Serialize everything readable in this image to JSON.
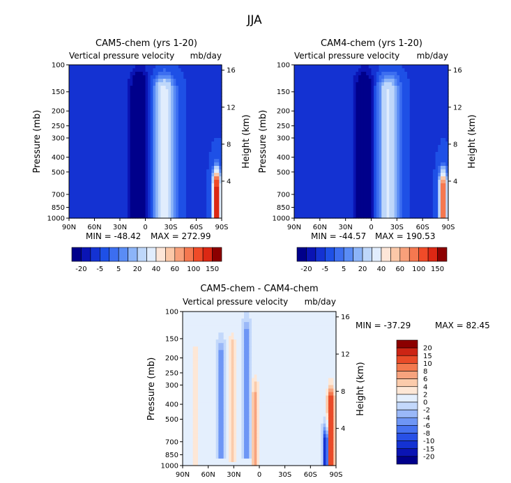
{
  "figure": {
    "title": "JJA"
  },
  "colors": {
    "full": [
      "#00008b",
      "#0a14b4",
      "#1432d2",
      "#1e50e6",
      "#3c6ef0",
      "#5a8cf5",
      "#8cb4f8",
      "#bed7fa",
      "#e1edfd",
      "#fde6d8",
      "#fbc8a8",
      "#f8a07a",
      "#f57850",
      "#f04b28",
      "#dc2814",
      "#8c0000"
    ],
    "diff": [
      "#00008b",
      "#0a14b4",
      "#1432d2",
      "#2850e6",
      "#4672f0",
      "#6e96f5",
      "#9ab8f8",
      "#c3d8fb",
      "#e4effd",
      "#fde7d6",
      "#fbcbab",
      "#f7a37e",
      "#f3794e",
      "#e94b28",
      "#cc2414",
      "#8c0000"
    ]
  },
  "chart_data": [
    {
      "type": "heatmap",
      "title": "CAM5-chem (yrs 1-20)",
      "subtitle_left": "Vertical pressure velocity",
      "subtitle_right": "mb/day",
      "xlabel": "",
      "ylabel": "Pressure (mb)",
      "y2label": "Height (km)",
      "x_ticks": [
        "90N",
        "60N",
        "30N",
        "0",
        "30S",
        "60S",
        "90S"
      ],
      "y_ticks": [
        "100",
        "150",
        "200",
        "250",
        "300",
        "400",
        "500",
        "700",
        "850",
        "1000"
      ],
      "y2_ticks": [
        "16",
        "12",
        "8",
        "4"
      ],
      "min_text": "MIN = -48.42",
      "max_text": "MAX = 272.99",
      "colorbar_labels": [
        "-20",
        "-5",
        "5",
        "20",
        "40",
        "60",
        "100",
        "150"
      ],
      "features": [
        {
          "lat": 7,
          "p_top": 140,
          "p_bottom": 1000,
          "half_width_deg": 10,
          "value": -30
        },
        {
          "lat": -22,
          "p_top": 150,
          "p_bottom": 1000,
          "half_width_deg": 12,
          "value": 25
        },
        {
          "lat": 60,
          "p_top": 300,
          "p_bottom": 900,
          "half_width_deg": 8,
          "value": -12
        },
        {
          "lat": 38,
          "p_top": 200,
          "p_bottom": 900,
          "half_width_deg": 6,
          "value": -12
        },
        {
          "lat": -84,
          "p_top": 650,
          "p_bottom": 1000,
          "half_width_deg": 4,
          "value": 120
        }
      ]
    },
    {
      "type": "heatmap",
      "title": "CAM4-chem (yrs 1-20)",
      "subtitle_left": "Vertical pressure velocity",
      "subtitle_right": "mb/day",
      "xlabel": "",
      "ylabel": "Pressure (mb)",
      "y2label": "Height (km)",
      "x_ticks": [
        "90N",
        "60N",
        "30N",
        "0",
        "30S",
        "60S",
        "90S"
      ],
      "y_ticks": [
        "100",
        "150",
        "200",
        "250",
        "300",
        "400",
        "500",
        "700",
        "850",
        "1000"
      ],
      "y2_ticks": [
        "16",
        "12",
        "8",
        "4"
      ],
      "min_text": "MIN = -44.57",
      "max_text": "MAX = 190.53",
      "colorbar_labels": [
        "-20",
        "-5",
        "5",
        "20",
        "40",
        "60",
        "100",
        "150"
      ],
      "features": [
        {
          "lat": 8,
          "p_top": 140,
          "p_bottom": 1000,
          "half_width_deg": 10,
          "value": -28
        },
        {
          "lat": -20,
          "p_top": 150,
          "p_bottom": 1000,
          "half_width_deg": 12,
          "value": 22
        },
        {
          "lat": 58,
          "p_top": 300,
          "p_bottom": 900,
          "half_width_deg": 8,
          "value": -12
        },
        {
          "lat": 36,
          "p_top": 200,
          "p_bottom": 900,
          "half_width_deg": 6,
          "value": -12
        },
        {
          "lat": -84,
          "p_top": 650,
          "p_bottom": 1000,
          "half_width_deg": 4,
          "value": 90
        }
      ]
    },
    {
      "type": "heatmap",
      "title": "CAM5-chem - CAM4-chem",
      "subtitle_left": "Vertical pressure velocity",
      "subtitle_right": "mb/day",
      "xlabel": "",
      "ylabel": "Pressure (mb)",
      "y2label": "Height (km)",
      "x_ticks": [
        "90N",
        "60N",
        "30N",
        "0",
        "30S",
        "60S",
        "90S"
      ],
      "y_ticks": [
        "100",
        "150",
        "200",
        "250",
        "300",
        "400",
        "500",
        "700",
        "850",
        "1000"
      ],
      "y2_ticks": [
        "16",
        "12",
        "8",
        "4"
      ],
      "min_text": "MIN = -37.29",
      "max_text": "MAX =  82.45",
      "colorbar_labels": [
        "20",
        "15",
        "10",
        "8",
        "6",
        "4",
        "2",
        "0",
        "-2",
        "-4",
        "-6",
        "-8",
        "-10",
        "-15",
        "-20"
      ],
      "features": [
        {
          "lat": 75,
          "p_top": 200,
          "p_bottom": 1000,
          "half_width_deg": 5,
          "value": 3
        },
        {
          "lat": 45,
          "p_top": 200,
          "p_bottom": 900,
          "half_width_deg": 4,
          "value": -6
        },
        {
          "lat": 32,
          "p_top": 180,
          "p_bottom": 950,
          "half_width_deg": 4,
          "value": 5
        },
        {
          "lat": 15,
          "p_top": 150,
          "p_bottom": 900,
          "half_width_deg": 4,
          "value": -7
        },
        {
          "lat": 5,
          "p_top": 350,
          "p_bottom": 1000,
          "half_width_deg": 4,
          "value": 6
        },
        {
          "lat": -84,
          "p_top": 400,
          "p_bottom": 1000,
          "half_width_deg": 4,
          "value": 15
        },
        {
          "lat": -78,
          "p_top": 700,
          "p_bottom": 1000,
          "half_width_deg": 3,
          "value": -15
        }
      ]
    }
  ]
}
